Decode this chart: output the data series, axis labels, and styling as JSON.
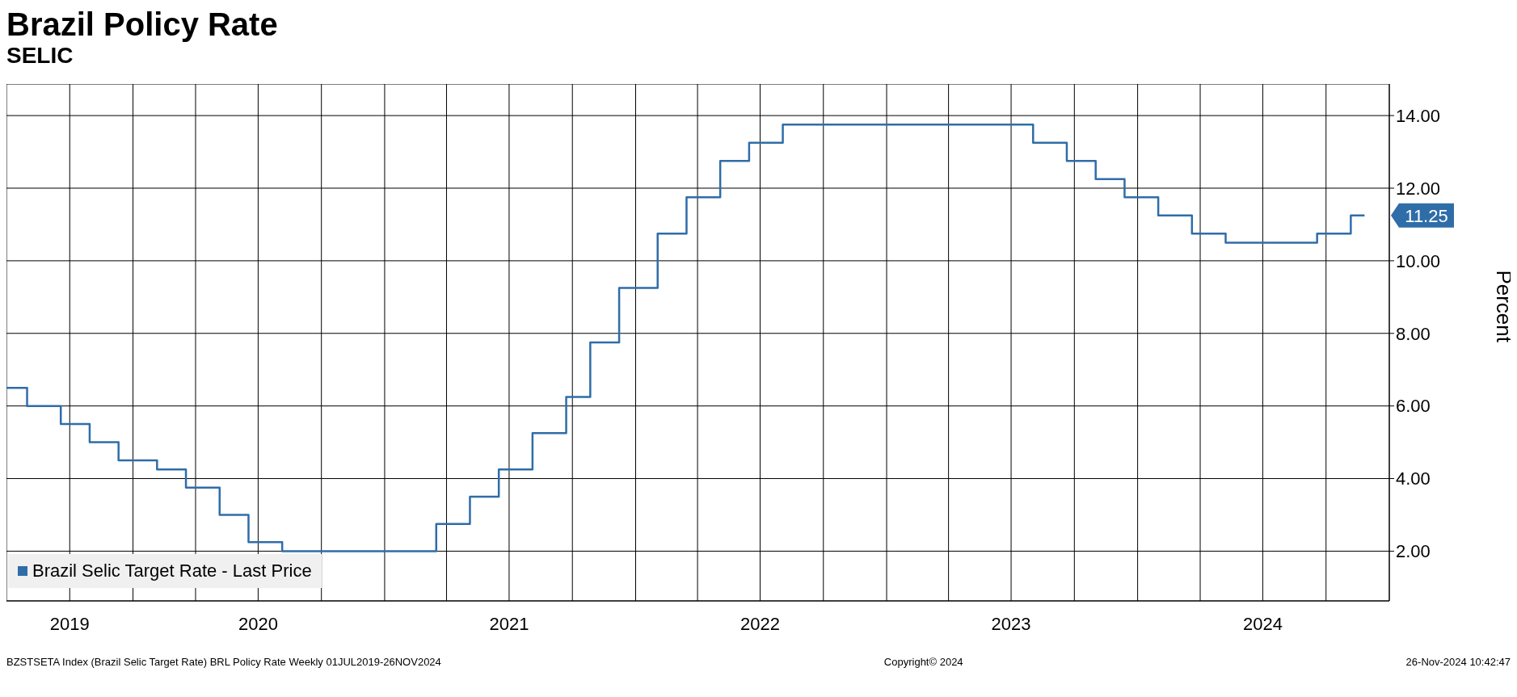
{
  "chart_data": {
    "type": "step",
    "title": "Brazil Policy Rate",
    "subtitle": "SELIC",
    "ylabel": "Percent",
    "x": [
      "2019-07-01",
      "2019-07-31",
      "2019-09-18",
      "2019-10-30",
      "2019-12-11",
      "2020-02-05",
      "2020-03-18",
      "2020-05-06",
      "2020-06-17",
      "2020-08-05",
      "2021-03-17",
      "2021-05-05",
      "2021-06-16",
      "2021-08-04",
      "2021-09-22",
      "2021-10-27",
      "2021-12-08",
      "2022-02-02",
      "2022-03-16",
      "2022-05-04",
      "2022-06-15",
      "2022-08-03",
      "2023-08-02",
      "2023-09-20",
      "2023-11-01",
      "2023-12-13",
      "2024-01-31",
      "2024-03-20",
      "2024-05-08",
      "2024-09-18",
      "2024-11-06",
      "2024-11-26"
    ],
    "series": [
      {
        "name": "Brazil Selic Target Rate - Last Price",
        "color": "#2f6da8",
        "values": [
          6.5,
          6.0,
          5.5,
          5.0,
          4.5,
          4.25,
          3.75,
          3.0,
          2.25,
          2.0,
          2.75,
          3.5,
          4.25,
          5.25,
          6.25,
          7.75,
          9.25,
          10.75,
          11.75,
          12.75,
          13.25,
          13.75,
          13.25,
          12.75,
          12.25,
          11.75,
          11.25,
          10.75,
          10.5,
          10.75,
          11.25,
          11.25
        ]
      }
    ],
    "xlim": [
      "2019-07-01",
      "2025-01-01"
    ],
    "xticks": [
      {
        "value": "2019-10-01",
        "label": "2019"
      },
      {
        "value": "2020-01-01",
        "label": null
      },
      {
        "value": "2020-04-01",
        "label": null
      },
      {
        "value": "2020-07-01",
        "label": "2020"
      },
      {
        "value": "2020-10-01",
        "label": null
      },
      {
        "value": "2021-01-01",
        "label": null
      },
      {
        "value": "2021-04-01",
        "label": null
      },
      {
        "value": "2021-07-01",
        "label": "2021"
      },
      {
        "value": "2021-10-01",
        "label": null
      },
      {
        "value": "2022-01-01",
        "label": null
      },
      {
        "value": "2022-04-01",
        "label": null
      },
      {
        "value": "2022-07-01",
        "label": "2022"
      },
      {
        "value": "2022-10-01",
        "label": null
      },
      {
        "value": "2023-01-01",
        "label": null
      },
      {
        "value": "2023-04-01",
        "label": null
      },
      {
        "value": "2023-07-01",
        "label": "2023"
      },
      {
        "value": "2023-10-01",
        "label": null
      },
      {
        "value": "2024-01-01",
        "label": null
      },
      {
        "value": "2024-04-01",
        "label": null
      },
      {
        "value": "2024-07-01",
        "label": "2024"
      },
      {
        "value": "2024-10-01",
        "label": null
      }
    ],
    "ylim": [
      0.63,
      14.87
    ],
    "yticks": [
      {
        "value": 2,
        "label": "2.00"
      },
      {
        "value": 4,
        "label": "4.00"
      },
      {
        "value": 6,
        "label": "6.00"
      },
      {
        "value": 8,
        "label": "8.00"
      },
      {
        "value": 10,
        "label": "10.00"
      },
      {
        "value": 12,
        "label": "12.00"
      },
      {
        "value": 14,
        "label": "14.00"
      }
    ],
    "grid": true,
    "legend": "bottom left",
    "annotations": [
      {
        "text": "11.25",
        "x": "2024-11-26",
        "y": 11.25
      },
      "BZSTSETA Index (Brazil Selic Target Rate) BRL Policy Rate  Weekly 01JUL2019-26NOV2024",
      "Copyright© 2024",
      "26-Nov-2024 10:42:47"
    ]
  }
}
